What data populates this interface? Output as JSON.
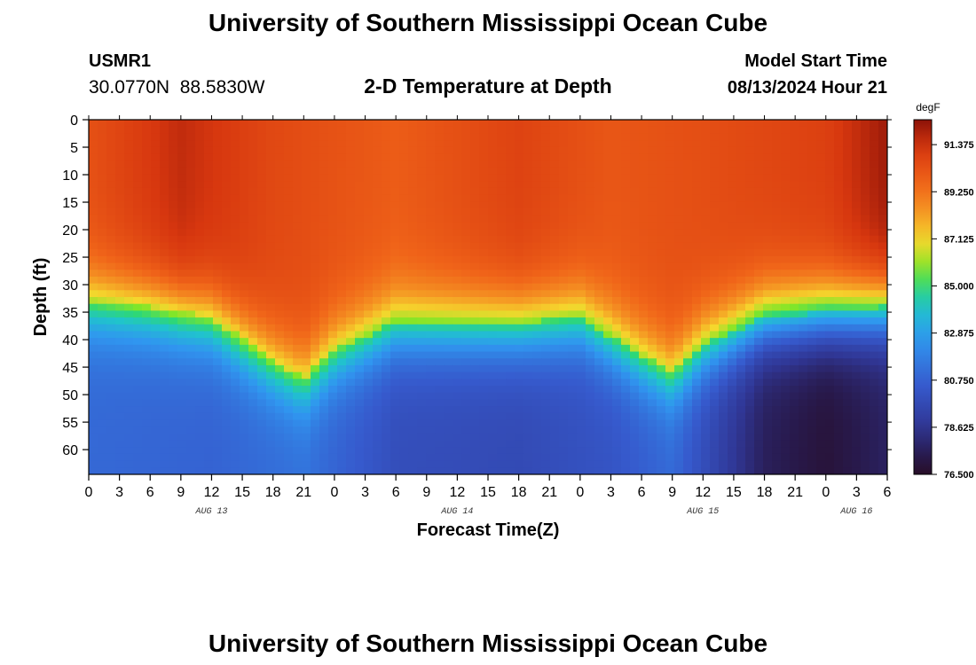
{
  "chart_data": {
    "type": "heatmap",
    "title": "University of Southern Mississippi Ocean Cube",
    "subtitle": "2-D Temperature at Depth",
    "station": {
      "id": "USMR1",
      "coords": "30.0770N  88.5830W"
    },
    "model_start": {
      "label": "Model Start Time",
      "value": "08/13/2024 Hour 21"
    },
    "xlabel": "Forecast Time(Z)",
    "ylabel": "Depth (ft)",
    "x_ticks": [
      "0",
      "3",
      "6",
      "9",
      "12",
      "15",
      "18",
      "21",
      "0",
      "3",
      "6",
      "9",
      "12",
      "15",
      "18",
      "21",
      "0",
      "3",
      "6",
      "9",
      "12",
      "15",
      "18",
      "21",
      "0",
      "3",
      "6"
    ],
    "date_labels": [
      {
        "label": "AUG 13",
        "hour_index": 12
      },
      {
        "label": "AUG 14",
        "hour_index": 36
      },
      {
        "label": "AUG 15",
        "hour_index": 60
      },
      {
        "label": "AUG 16",
        "hour_index": 75
      }
    ],
    "x_range_hours": [
      0,
      78
    ],
    "y_ticks": [
      "0",
      "5",
      "10",
      "15",
      "20",
      "25",
      "30",
      "35",
      "40",
      "45",
      "50",
      "55",
      "60"
    ],
    "y_range_ft": [
      0,
      64.5
    ],
    "colorbar": {
      "unit": "degF",
      "min": 76.5,
      "max": 92.5,
      "ticks": [
        "91.375",
        "89.250",
        "87.125",
        "85.000",
        "82.875",
        "80.750",
        "78.625",
        "76.500"
      ]
    },
    "thermocline": {
      "hours": [
        0,
        6,
        12,
        18,
        21,
        24,
        30,
        36,
        42,
        48,
        54,
        57,
        60,
        66,
        72,
        78
      ],
      "depth_ft": [
        33,
        34,
        36,
        44,
        47,
        42,
        37,
        37,
        37,
        36,
        43,
        46,
        41,
        36,
        35,
        34
      ]
    },
    "deep_cold": {
      "hours": [
        0,
        12,
        21,
        30,
        42,
        51,
        57,
        66,
        72,
        78
      ],
      "temp_degF": [
        81.0,
        80.8,
        81.3,
        79.9,
        79.7,
        80.2,
        81.0,
        77.6,
        76.9,
        77.7
      ]
    },
    "surface_warm": {
      "hours": [
        0,
        9,
        18,
        30,
        42,
        51,
        60,
        72,
        78
      ],
      "temp_degF": [
        90.3,
        91.6,
        90.6,
        89.9,
        90.8,
        90.1,
        90.4,
        90.9,
        92.2
      ]
    }
  },
  "footer": {
    "title": "University of Southern Mississippi Ocean Cube"
  }
}
